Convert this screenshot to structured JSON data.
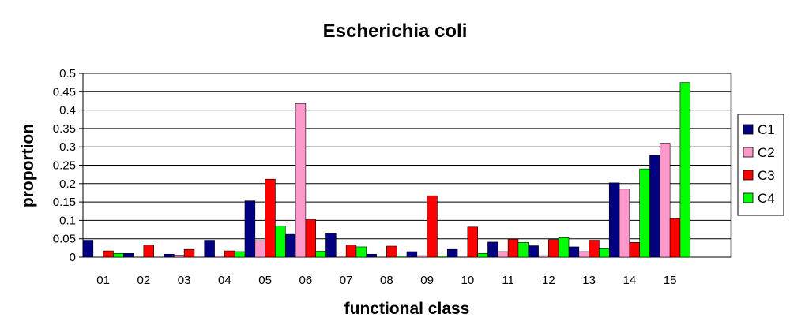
{
  "chart_data": {
    "type": "bar",
    "title": "Escherichia coli",
    "xlabel": "functional class",
    "ylabel": "proportion",
    "categories": [
      "01",
      "02",
      "03",
      "04",
      "05",
      "06",
      "07",
      "08",
      "09",
      "10",
      "11",
      "12",
      "13",
      "14",
      "15"
    ],
    "ylim": [
      0,
      0.5
    ],
    "yticks": [
      "0",
      "0.05",
      "0.1",
      "0.15",
      "0.2",
      "0.25",
      "0.3",
      "0.35",
      "0.4",
      "0.45",
      "0.5"
    ],
    "ytick_values": [
      0,
      0.05,
      0.1,
      0.15,
      0.2,
      0.25,
      0.3,
      0.35,
      0.4,
      0.45,
      0.5
    ],
    "grid": true,
    "legend_position": "right",
    "series": [
      {
        "name": "C1",
        "color": "#000080",
        "values": [
          0.046,
          0.01,
          0.008,
          0.046,
          0.153,
          0.062,
          0.065,
          0.008,
          0.015,
          0.021,
          0.041,
          0.031,
          0.028,
          0.202,
          0.277
        ]
      },
      {
        "name": "C2",
        "color": "#FF99CC",
        "values": [
          0,
          0,
          0.005,
          0.003,
          0.045,
          0.418,
          0.003,
          0,
          0.004,
          0,
          0.015,
          0.004,
          0.015,
          0.185,
          0.31
        ]
      },
      {
        "name": "C3",
        "color": "#FF0000",
        "values": [
          0.017,
          0.033,
          0.021,
          0.017,
          0.212,
          0.102,
          0.033,
          0.03,
          0.167,
          0.082,
          0.049,
          0.048,
          0.046,
          0.04,
          0.105
        ]
      },
      {
        "name": "C4",
        "color": "#00FF00",
        "values": [
          0.01,
          0,
          0,
          0.015,
          0.085,
          0.016,
          0.028,
          0.003,
          0.003,
          0.01,
          0.04,
          0.053,
          0.023,
          0.24,
          0.475
        ]
      }
    ]
  }
}
